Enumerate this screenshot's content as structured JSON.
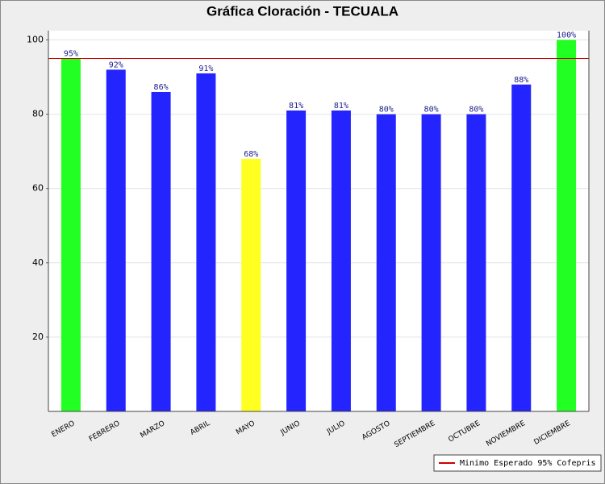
{
  "chart_data": {
    "type": "bar",
    "title": "Gráfica Cloración - TECUALA",
    "categories": [
      "ENERO",
      "FEBRERO",
      "MARZO",
      "ABRIL",
      "MAYO",
      "JUNIO",
      "JULIO",
      "AGOSTO",
      "SEPTIEMBRE",
      "OCTUBRE",
      "NOVIEMBRE",
      "DICIEMBRE"
    ],
    "values": [
      95,
      92,
      86,
      91,
      68,
      81,
      81,
      80,
      80,
      80,
      88,
      100
    ],
    "value_labels": [
      "95%",
      "92%",
      "86%",
      "91%",
      "68%",
      "81%",
      "81%",
      "80%",
      "80%",
      "80%",
      "88%",
      "100%"
    ],
    "colors": [
      "#22ff22",
      "#2424ff",
      "#2424ff",
      "#2424ff",
      "#ffff22",
      "#2424ff",
      "#2424ff",
      "#2424ff",
      "#2424ff",
      "#2424ff",
      "#2424ff",
      "#22ff22"
    ],
    "ylim": [
      0,
      102.5
    ],
    "yticks": [
      20,
      40,
      60,
      80,
      100
    ],
    "grid": true,
    "reference_line": {
      "value": 95,
      "label": "Minimo Esperado 95% Cofepris",
      "color": "#cc0000"
    },
    "legend_position": "bottom-right"
  }
}
